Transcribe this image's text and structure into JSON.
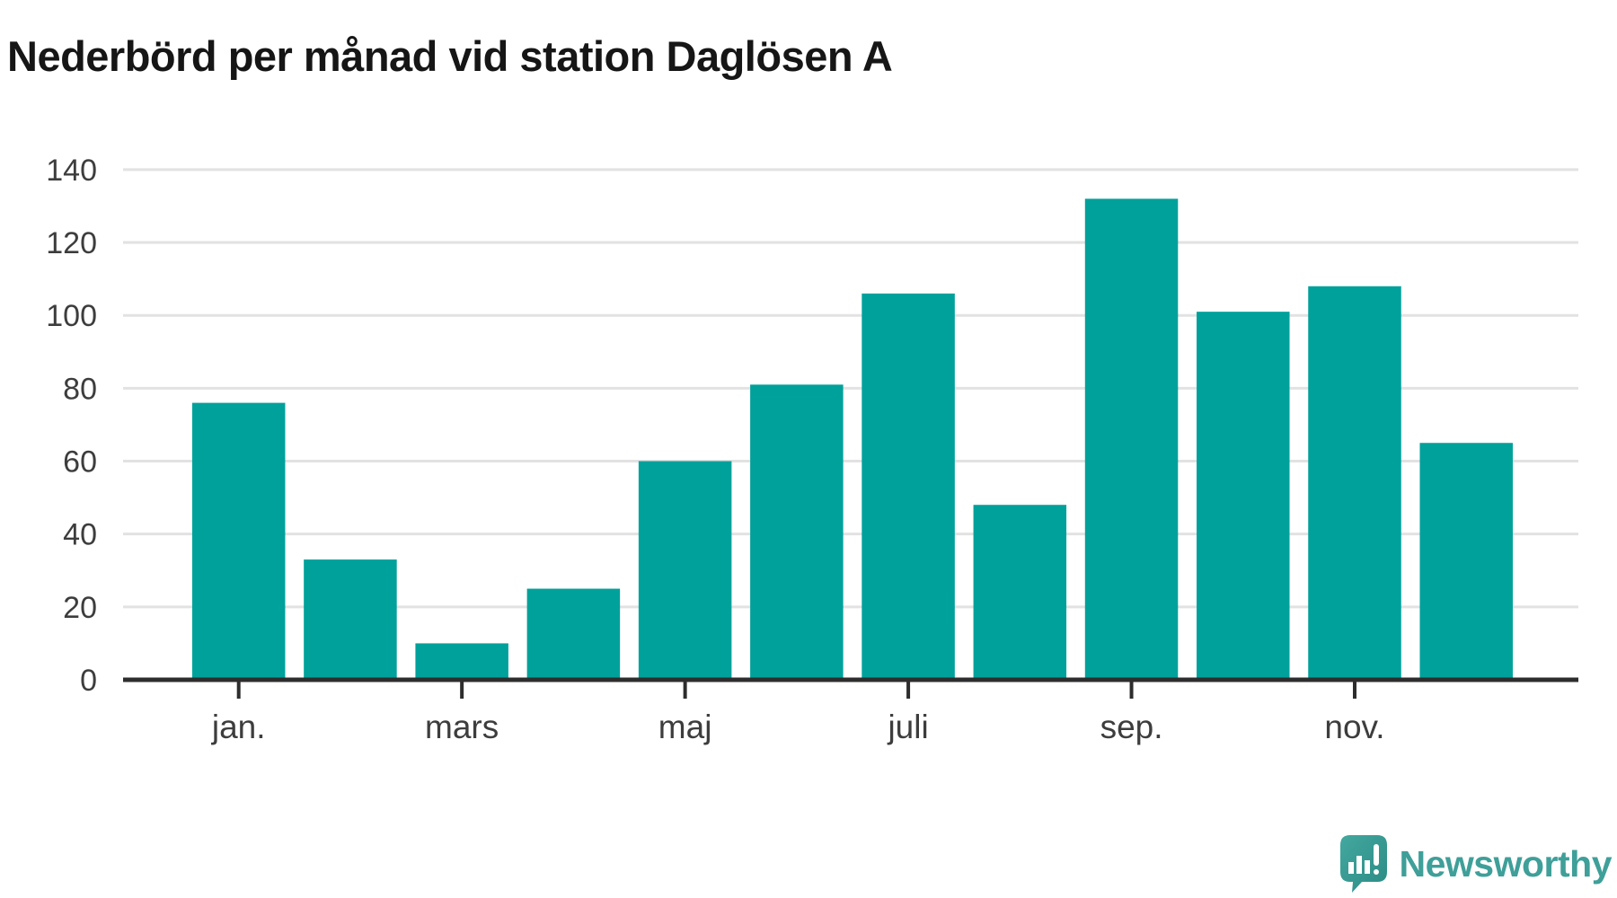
{
  "title": "Nederbörd per månad vid station Daglösen A",
  "chart_data": {
    "type": "bar",
    "title": "Nederbörd per månad vid station Daglösen A",
    "values": [
      76,
      33,
      10,
      25,
      60,
      81,
      106,
      48,
      132,
      101,
      108,
      65
    ],
    "x_tick_labels": [
      "jan.",
      "mars",
      "maj",
      "juli",
      "sep.",
      "nov."
    ],
    "x_tick_bar_indices": [
      0,
      2,
      4,
      6,
      8,
      10
    ],
    "y_ticks": [
      0,
      20,
      40,
      60,
      80,
      100,
      120,
      140
    ],
    "ylim": [
      0,
      145
    ],
    "xlabel": "",
    "ylabel": "",
    "grid": true,
    "legend": "none",
    "bar_color": "#00a19b",
    "axis_color": "#2d2d2d",
    "gridline_color": "#e2e2e2",
    "tick_label_color": "#3d3d3d"
  },
  "branding": {
    "logo_text": "Newsworthy",
    "logo_color": "#3f9f99",
    "logo_icon": "newsworthy-speech-bubble-bar-chart-icon"
  }
}
